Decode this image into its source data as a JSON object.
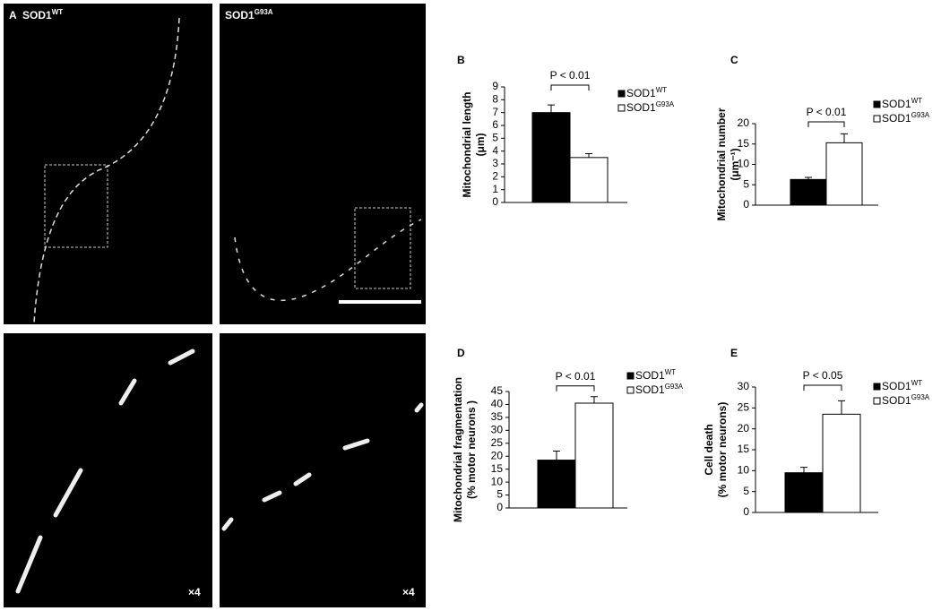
{
  "images": [
    {
      "label": "A",
      "title": "SOD1",
      "title_sup": "WT"
    },
    {
      "title": "SOD1",
      "title_sup": "G93A"
    },
    {
      "magnification": "×4"
    },
    {
      "magnification": "×4"
    }
  ],
  "chart_data": [
    {
      "type": "bar",
      "panel": "B",
      "y_label": [
        "Mitochondrial length",
        "(μm)"
      ],
      "categories": [
        null
      ],
      "ylim": [
        0,
        9
      ],
      "yticks": [
        0,
        1,
        2,
        3,
        4,
        5,
        6,
        7,
        8,
        9
      ],
      "annotation": "P < 0.01",
      "series": [
        {
          "name": "SOD1",
          "name_sup": "WT",
          "color": "#000000",
          "values": [
            7.0
          ],
          "errors": [
            0.6
          ]
        },
        {
          "name": "SOD1",
          "name_sup": "G93A",
          "color": "#ffffff",
          "values": [
            3.5
          ],
          "errors": [
            0.3
          ]
        }
      ]
    },
    {
      "type": "bar",
      "panel": "C",
      "y_label": [
        "Mitochondrial number",
        "(μm⁻¹)"
      ],
      "categories": [
        null
      ],
      "ylim": [
        0,
        20
      ],
      "yticks": [
        0,
        5,
        10,
        15,
        20
      ],
      "annotation": "P < 0.01",
      "series": [
        {
          "name": "SOD1",
          "name_sup": "WT",
          "color": "#000000",
          "values": [
            6.3
          ],
          "errors": [
            0.5
          ]
        },
        {
          "name": "SOD1",
          "name_sup": "G93A",
          "color": "#ffffff",
          "values": [
            15.3
          ],
          "errors": [
            2.2
          ]
        }
      ]
    },
    {
      "type": "bar",
      "panel": "D",
      "y_label": [
        "Mitochondrial fragmentation",
        "(% motor neurons )"
      ],
      "categories": [
        null
      ],
      "ylim": [
        0,
        45
      ],
      "yticks": [
        0,
        5,
        10,
        15,
        20,
        25,
        30,
        35,
        40,
        45
      ],
      "annotation": "P < 0.01",
      "series": [
        {
          "name": "SOD1",
          "name_sup": "WT",
          "color": "#000000",
          "values": [
            18.5
          ],
          "errors": [
            3.5
          ]
        },
        {
          "name": "SOD1",
          "name_sup": "G93A",
          "color": "#ffffff",
          "values": [
            40.5
          ],
          "errors": [
            2.5
          ]
        }
      ]
    },
    {
      "type": "bar",
      "panel": "E",
      "y_label": [
        "Cell death",
        "(% motor neurons)"
      ],
      "categories": [
        null
      ],
      "ylim": [
        0,
        30
      ],
      "yticks": [
        0,
        5,
        10,
        15,
        20,
        25,
        30
      ],
      "annotation": "P < 0.05",
      "series": [
        {
          "name": "SOD1",
          "name_sup": "WT",
          "color": "#000000",
          "values": [
            9.5
          ],
          "errors": [
            1.3
          ]
        },
        {
          "name": "SOD1",
          "name_sup": "G93A",
          "color": "#ffffff",
          "values": [
            23.5
          ],
          "errors": [
            3.2
          ]
        }
      ]
    }
  ]
}
